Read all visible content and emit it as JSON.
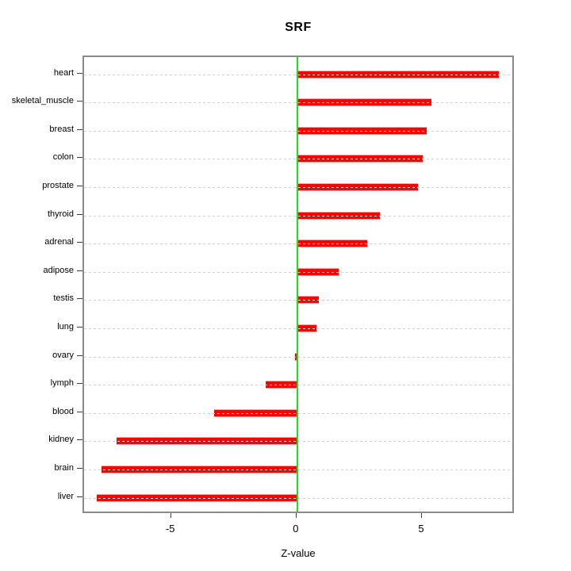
{
  "chart_data": {
    "type": "bar",
    "orientation": "horizontal",
    "title": "SRF",
    "xlabel": "Z-value",
    "ylabel": "",
    "categories": [
      "heart",
      "skeletal_muscle",
      "breast",
      "colon",
      "prostate",
      "thyroid",
      "adrenal",
      "adipose",
      "testis",
      "lung",
      "ovary",
      "lymph",
      "blood",
      "kidney",
      "brain",
      "liver"
    ],
    "values": [
      8.05,
      5.35,
      5.15,
      5.0,
      4.8,
      3.3,
      2.8,
      1.65,
      0.85,
      0.75,
      -0.1,
      -1.25,
      -3.3,
      -7.2,
      -7.8,
      -8.0
    ],
    "xlim": [
      -8.5,
      8.7
    ],
    "xticks": [
      -5,
      0,
      5
    ],
    "grid": "horizontal dotted lines at each category",
    "legend": "none",
    "colors": {
      "bar": "#ff0000",
      "zero_line": "#1fdd1f",
      "gridline": "#d2d2d2",
      "box_border": "#8c8c8c",
      "text": "#000000",
      "background": "#ffffff"
    }
  }
}
